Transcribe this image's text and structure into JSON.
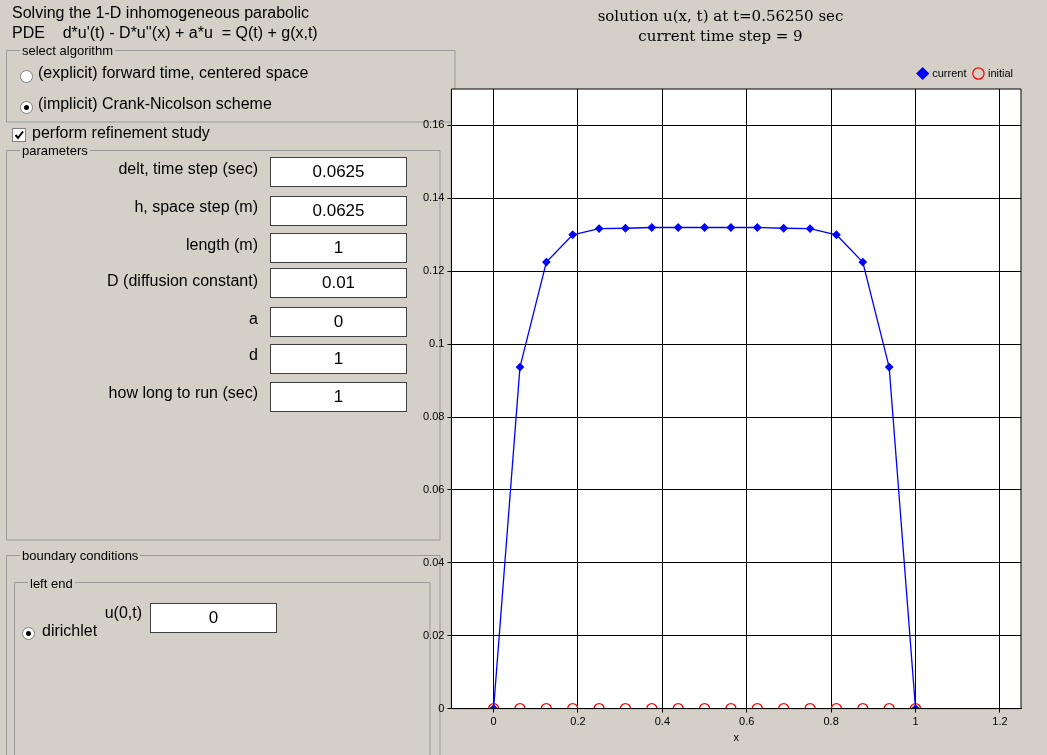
{
  "chart_data": [
    {
      "type": "other",
      "annotations": [
        "Solving the 1-D inhomogeneous parabolic",
        "PDE    d*u'(t) - D*u''(x) + a*u  = Q(t) + g(x,t)",
        "select algorithm",
        "(explicit) forward time, centered space",
        "(implicit) Crank-Nicolson scheme",
        "perform refinement study",
        "parameters",
        "delt, time step (sec)",
        "0.0625",
        "h, space step (m)",
        "0.0625",
        "length (m)",
        "1",
        "D (diffusion constant)",
        "0.01",
        "a",
        "0",
        "d",
        "1",
        "how long to run (sec)",
        "1",
        "boundary conditions",
        "left end",
        "dirichlet",
        "u(0,t)",
        "0"
      ]
    },
    {
      "type": "line",
      "title": "solution u(x, t) at t=0.56250 sec",
      "subtitle": "current time step = 9",
      "xlabel": "x",
      "x": [
        0,
        0.0625,
        0.125,
        0.1875,
        0.25,
        0.3125,
        0.375,
        0.4375,
        0.5,
        0.5625,
        0.625,
        0.6875,
        0.75,
        0.8125,
        0.875,
        0.9375,
        1
      ],
      "series": [
        {
          "name": "current",
          "type": "line",
          "color": "#0000ff",
          "marker": "diamond",
          "values": [
            0,
            0.0937,
            0.1225,
            0.13,
            0.1317,
            0.1318,
            0.132,
            0.132,
            0.132,
            0.132,
            0.132,
            0.1318,
            0.1317,
            0.13,
            0.1225,
            0.0937,
            0
          ]
        },
        {
          "name": "initial",
          "type": "scatter",
          "color": "#ff0000",
          "marker": "circle",
          "values": [
            0,
            0,
            0,
            0,
            0,
            0,
            0,
            0,
            0,
            0,
            0,
            0,
            0,
            0,
            0,
            0,
            0
          ]
        }
      ],
      "xlim": [
        -0.1,
        1.25
      ],
      "xticks": [
        0,
        0.2,
        0.4,
        0.6,
        0.8,
        1,
        1.2
      ],
      "ylim": [
        0,
        0.17
      ],
      "yticks": [
        0,
        0.02,
        0.04,
        0.06,
        0.08,
        0.1,
        0.12,
        0.14,
        0.16
      ],
      "grid": true,
      "legend": "top right"
    }
  ]
}
